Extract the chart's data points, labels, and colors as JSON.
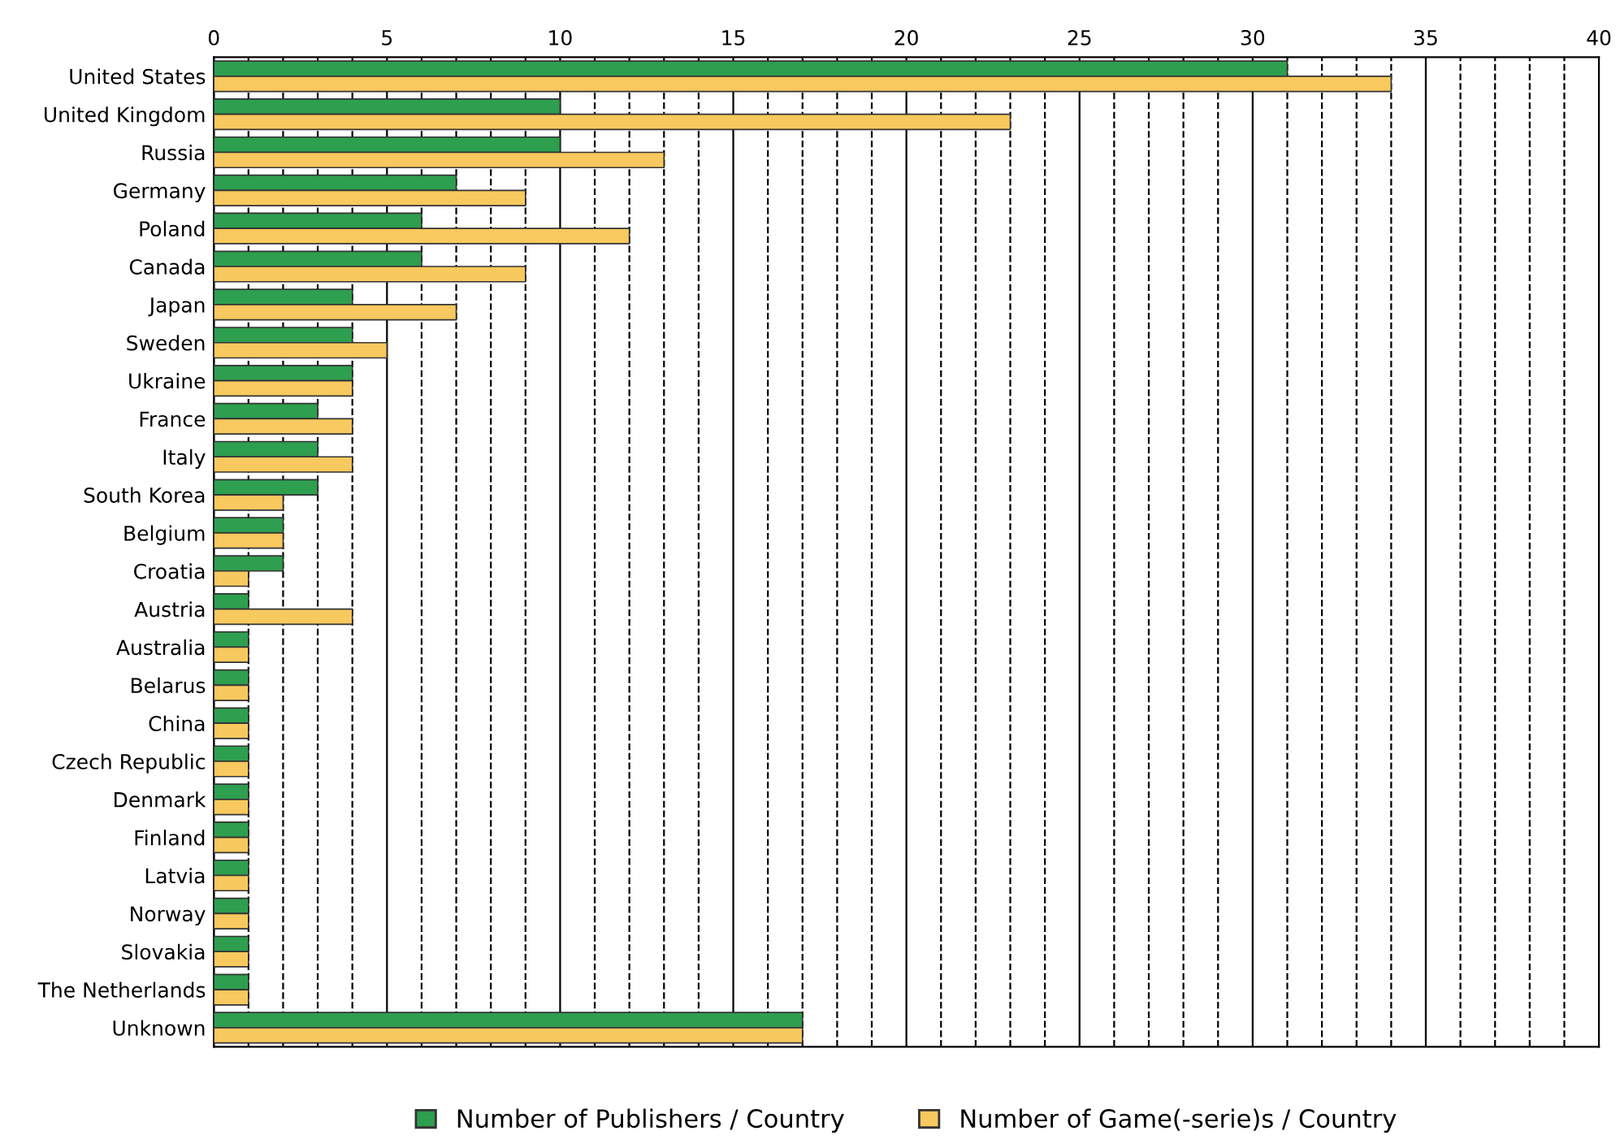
{
  "chart_data": {
    "type": "bar",
    "orientation": "horizontal",
    "categories": [
      "United States",
      "United Kingdom",
      "Russia",
      "Germany",
      "Poland",
      "Canada",
      "Japan",
      "Sweden",
      "Ukraine",
      "France",
      "Italy",
      "South Korea",
      "Belgium",
      "Croatia",
      "Austria",
      "Australia",
      "Belarus",
      "China",
      "Czech Republic",
      "Denmark",
      "Finland",
      "Latvia",
      "Norway",
      "Slovakia",
      "The Netherlands",
      "Unknown"
    ],
    "series": [
      {
        "name": "Number of Publishers / Country",
        "color": "#2e9e4f",
        "values": [
          31,
          10,
          10,
          7,
          6,
          6,
          4,
          4,
          4,
          3,
          3,
          3,
          2,
          2,
          1,
          1,
          1,
          1,
          1,
          1,
          1,
          1,
          1,
          1,
          1,
          17
        ]
      },
      {
        "name": "Number of Game(-serie)s / Country",
        "color": "#f7c95e",
        "values": [
          34,
          23,
          13,
          9,
          12,
          9,
          7,
          5,
          4,
          4,
          4,
          2,
          2,
          1,
          4,
          1,
          1,
          1,
          1,
          1,
          1,
          1,
          1,
          1,
          1,
          17
        ]
      }
    ],
    "xlim": [
      0,
      40
    ],
    "xticks": [
      0,
      {
        "value": 1,
        "label": null
      },
      {
        "value": 2,
        "label": null
      },
      {
        "value": 3,
        "label": null
      },
      {
        "value": 4,
        "label": null
      },
      5,
      {
        "value": 6,
        "label": null
      },
      {
        "value": 7,
        "label": null
      },
      {
        "value": 8,
        "label": null
      },
      {
        "value": 9,
        "label": null
      },
      10,
      {
        "value": 11,
        "label": null
      },
      {
        "value": 12,
        "label": null
      },
      {
        "value": 13,
        "label": null
      },
      {
        "value": 14,
        "label": null
      },
      15,
      {
        "value": 16,
        "label": null
      },
      {
        "value": 17,
        "label": null
      },
      {
        "value": 18,
        "label": null
      },
      {
        "value": 19,
        "label": null
      },
      20,
      {
        "value": 21,
        "label": null
      },
      {
        "value": 22,
        "label": null
      },
      {
        "value": 23,
        "label": null
      },
      {
        "value": 24,
        "label": null
      },
      25,
      {
        "value": 26,
        "label": null
      },
      {
        "value": 27,
        "label": null
      },
      {
        "value": 28,
        "label": null
      },
      {
        "value": 29,
        "label": null
      },
      30,
      {
        "value": 31,
        "label": null
      },
      {
        "value": 32,
        "label": null
      },
      {
        "value": 33,
        "label": null
      },
      {
        "value": 34,
        "label": null
      },
      35,
      {
        "value": 36,
        "label": null
      },
      {
        "value": 37,
        "label": null
      },
      {
        "value": 38,
        "label": null
      },
      {
        "value": 39,
        "label": null
      },
      40
    ],
    "grid": "x",
    "legend": "bottom"
  }
}
